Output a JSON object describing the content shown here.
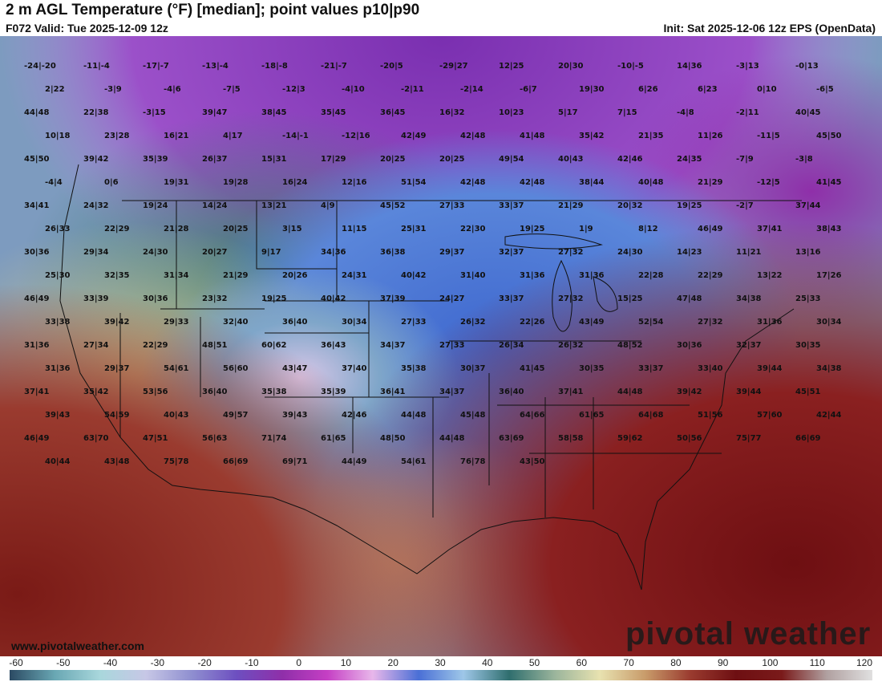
{
  "header": {
    "title": "2 m AGL Temperature (°F) [median]; point values p10|p90",
    "valid": "F072 Valid: Tue 2025-12-09 12z",
    "init": "Init: Sat 2025-12-06 12z EPS (OpenData)"
  },
  "footer": {
    "credit": "www.pivotalweather.com",
    "brand": "pivotal weather"
  },
  "scale": {
    "ticks": [
      "-60",
      "-50",
      "-40",
      "-30",
      "-20",
      "-10",
      "0",
      "10",
      "20",
      "30",
      "40",
      "50",
      "60",
      "70",
      "80",
      "90",
      "100",
      "110",
      "120"
    ],
    "colors": [
      "#2b4a63",
      "#6aa8b4",
      "#a9d7dc",
      "#c7c7e6",
      "#8f8fd0",
      "#6d4fc0",
      "#8f2fa9",
      "#c53fc4",
      "#e8b7ea",
      "#4a6fd6",
      "#9ec7e8",
      "#2f6e6e",
      "#9bb59c",
      "#e8e2b0",
      "#c89b6a",
      "#9a3b2f",
      "#6e0f12",
      "#7a1a1a",
      "#b0a0a0",
      "#e0e0e0"
    ]
  },
  "points": [
    {
      "t": "-24|-20"
    },
    {
      "t": "-11|-4"
    },
    {
      "t": "-17|-7"
    },
    {
      "t": "-13|-4"
    },
    {
      "t": "-18|-8"
    },
    {
      "t": "-21|-7"
    },
    {
      "t": "-20|5"
    },
    {
      "t": "-29|27"
    },
    {
      "t": "12|25"
    },
    {
      "t": "20|30"
    },
    {
      "t": "-10|-5"
    },
    {
      "t": "14|36"
    },
    {
      "t": "-3|13"
    },
    {
      "t": "-0|13"
    },
    {
      "t": "2|22"
    },
    {
      "t": "-3|9"
    },
    {
      "t": "-4|6"
    },
    {
      "t": "-7|5"
    },
    {
      "t": "-12|3"
    },
    {
      "t": "-4|10"
    },
    {
      "t": "-2|11"
    },
    {
      "t": "-2|14"
    },
    {
      "t": "-6|7"
    },
    {
      "t": "19|30"
    },
    {
      "t": "6|26"
    },
    {
      "t": "6|23"
    },
    {
      "t": "0|10"
    },
    {
      "t": "-6|5"
    },
    {
      "t": "44|48"
    },
    {
      "t": "22|38"
    },
    {
      "t": "-3|15"
    },
    {
      "t": "39|47"
    },
    {
      "t": "38|45"
    },
    {
      "t": "35|45"
    },
    {
      "t": "36|45"
    },
    {
      "t": "16|32"
    },
    {
      "t": "10|23"
    },
    {
      "t": "5|17"
    },
    {
      "t": "7|15"
    },
    {
      "t": "-4|8"
    },
    {
      "t": "-2|11"
    },
    {
      "t": "40|45"
    },
    {
      "t": "10|18"
    },
    {
      "t": "23|28"
    },
    {
      "t": "16|21"
    },
    {
      "t": "4|17"
    },
    {
      "t": "-14|-1"
    },
    {
      "t": "-12|16"
    },
    {
      "t": "42|49"
    },
    {
      "t": "42|48"
    },
    {
      "t": "41|48"
    },
    {
      "t": "35|42"
    },
    {
      "t": "21|35"
    },
    {
      "t": "11|26"
    },
    {
      "t": "-11|5"
    },
    {
      "t": "45|50"
    },
    {
      "t": "45|50"
    },
    {
      "t": "39|42"
    },
    {
      "t": "35|39"
    },
    {
      "t": "26|37"
    },
    {
      "t": "15|31"
    },
    {
      "t": "17|29"
    },
    {
      "t": "20|25"
    },
    {
      "t": "20|25"
    },
    {
      "t": "49|54"
    },
    {
      "t": "40|43"
    },
    {
      "t": "42|46"
    },
    {
      "t": "24|35"
    },
    {
      "t": "-7|9"
    },
    {
      "t": "-3|8"
    },
    {
      "t": "-4|4"
    },
    {
      "t": "0|6"
    },
    {
      "t": "19|31"
    },
    {
      "t": "19|28"
    },
    {
      "t": "16|24"
    },
    {
      "t": "12|16"
    },
    {
      "t": "51|54"
    },
    {
      "t": "42|48"
    },
    {
      "t": "42|48"
    },
    {
      "t": "38|44"
    },
    {
      "t": "40|48"
    },
    {
      "t": "21|29"
    },
    {
      "t": "-12|5"
    },
    {
      "t": "41|45"
    },
    {
      "t": "34|41"
    },
    {
      "t": "24|32"
    },
    {
      "t": "19|24"
    },
    {
      "t": "14|24"
    },
    {
      "t": "13|21"
    },
    {
      "t": "4|9"
    },
    {
      "t": "45|52"
    },
    {
      "t": "27|33"
    },
    {
      "t": "33|37"
    },
    {
      "t": "21|29"
    },
    {
      "t": "20|32"
    },
    {
      "t": "19|25"
    },
    {
      "t": "-2|7"
    },
    {
      "t": "37|44"
    },
    {
      "t": "26|33"
    },
    {
      "t": "22|29"
    },
    {
      "t": "21|28"
    },
    {
      "t": "20|25"
    },
    {
      "t": "3|15"
    },
    {
      "t": "11|15"
    },
    {
      "t": "25|31"
    },
    {
      "t": "22|30"
    },
    {
      "t": "19|25"
    },
    {
      "t": "1|9"
    },
    {
      "t": "8|12"
    },
    {
      "t": "46|49"
    },
    {
      "t": "37|41"
    },
    {
      "t": "38|43"
    },
    {
      "t": "30|36"
    },
    {
      "t": "29|34"
    },
    {
      "t": "24|30"
    },
    {
      "t": "20|27"
    },
    {
      "t": "9|17"
    },
    {
      "t": "34|36"
    },
    {
      "t": "36|38"
    },
    {
      "t": "29|37"
    },
    {
      "t": "32|37"
    },
    {
      "t": "27|32"
    },
    {
      "t": "24|30"
    },
    {
      "t": "14|23"
    },
    {
      "t": "11|21"
    },
    {
      "t": "13|16"
    },
    {
      "t": "25|30"
    },
    {
      "t": "32|35"
    },
    {
      "t": "31|34"
    },
    {
      "t": "21|29"
    },
    {
      "t": "20|26"
    },
    {
      "t": "24|31"
    },
    {
      "t": "40|42"
    },
    {
      "t": "31|40"
    },
    {
      "t": "31|36"
    },
    {
      "t": "31|36"
    },
    {
      "t": "22|28"
    },
    {
      "t": "22|29"
    },
    {
      "t": "13|22"
    },
    {
      "t": "17|26"
    },
    {
      "t": "46|49"
    },
    {
      "t": "33|39"
    },
    {
      "t": "30|36"
    },
    {
      "t": "23|32"
    },
    {
      "t": "19|25"
    },
    {
      "t": "40|42"
    },
    {
      "t": "37|39"
    },
    {
      "t": "24|27"
    },
    {
      "t": "33|37"
    },
    {
      "t": "27|32"
    },
    {
      "t": "15|25"
    },
    {
      "t": "47|48"
    },
    {
      "t": "34|38"
    },
    {
      "t": "25|33"
    },
    {
      "t": "33|38"
    },
    {
      "t": "39|42"
    },
    {
      "t": "29|33"
    },
    {
      "t": "32|40"
    },
    {
      "t": "36|40"
    },
    {
      "t": "30|34"
    },
    {
      "t": "27|33"
    },
    {
      "t": "26|32"
    },
    {
      "t": "22|26"
    },
    {
      "t": "43|49"
    },
    {
      "t": "52|54"
    },
    {
      "t": "27|32"
    },
    {
      "t": "31|36"
    },
    {
      "t": "30|34"
    },
    {
      "t": "31|36"
    },
    {
      "t": "27|34"
    },
    {
      "t": "22|29"
    },
    {
      "t": "48|51"
    },
    {
      "t": "60|62"
    },
    {
      "t": "36|43"
    },
    {
      "t": "34|37"
    },
    {
      "t": "27|33"
    },
    {
      "t": "26|34"
    },
    {
      "t": "26|32"
    },
    {
      "t": "48|52"
    },
    {
      "t": "30|36"
    },
    {
      "t": "32|37"
    },
    {
      "t": "30|35"
    },
    {
      "t": "31|36"
    },
    {
      "t": "29|37"
    },
    {
      "t": "54|61"
    },
    {
      "t": "56|60"
    },
    {
      "t": "43|47"
    },
    {
      "t": "37|40"
    },
    {
      "t": "35|38"
    },
    {
      "t": "30|37"
    },
    {
      "t": "41|45"
    },
    {
      "t": "30|35"
    },
    {
      "t": "33|37"
    },
    {
      "t": "33|40"
    },
    {
      "t": "39|44"
    },
    {
      "t": "34|38"
    },
    {
      "t": "37|41"
    },
    {
      "t": "35|42"
    },
    {
      "t": "53|56"
    },
    {
      "t": "36|40"
    },
    {
      "t": "35|38"
    },
    {
      "t": "35|39"
    },
    {
      "t": "36|41"
    },
    {
      "t": "34|37"
    },
    {
      "t": "36|40"
    },
    {
      "t": "37|41"
    },
    {
      "t": "44|48"
    },
    {
      "t": "39|42"
    },
    {
      "t": "39|44"
    },
    {
      "t": "45|51"
    },
    {
      "t": "39|43"
    },
    {
      "t": "54|59"
    },
    {
      "t": "40|43"
    },
    {
      "t": "49|57"
    },
    {
      "t": "39|43"
    },
    {
      "t": "42|46"
    },
    {
      "t": "44|48"
    },
    {
      "t": "45|48"
    },
    {
      "t": "64|66"
    },
    {
      "t": "61|65"
    },
    {
      "t": "64|68"
    },
    {
      "t": "51|56"
    },
    {
      "t": "57|60"
    },
    {
      "t": "42|44"
    },
    {
      "t": "46|49"
    },
    {
      "t": "63|70"
    },
    {
      "t": "47|51"
    },
    {
      "t": "56|63"
    },
    {
      "t": "71|74"
    },
    {
      "t": "61|65"
    },
    {
      "t": "48|50"
    },
    {
      "t": "44|48"
    },
    {
      "t": "63|69"
    },
    {
      "t": "58|58"
    },
    {
      "t": "59|62"
    },
    {
      "t": "50|56"
    },
    {
      "t": "75|77"
    },
    {
      "t": "66|69"
    },
    {
      "t": "40|44"
    },
    {
      "t": "43|48"
    },
    {
      "t": "75|78"
    },
    {
      "t": "66|69"
    },
    {
      "t": "69|71"
    },
    {
      "t": "44|49"
    },
    {
      "t": "54|61"
    },
    {
      "t": "76|78"
    },
    {
      "t": "43|50"
    }
  ]
}
